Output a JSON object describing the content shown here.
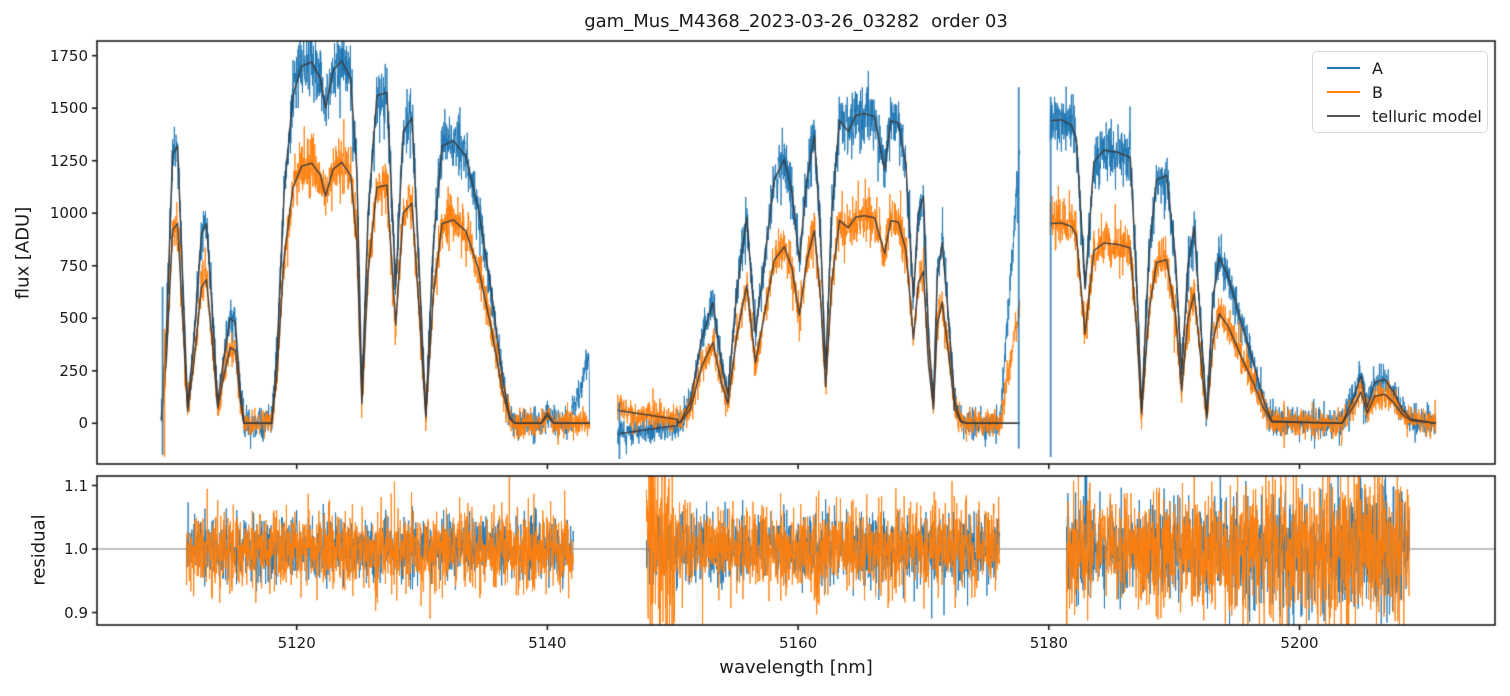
{
  "figure": {
    "title": "gam_Mus_M4368_2023-03-26_03282  order 03"
  },
  "chart_data": {
    "type": "line",
    "title": "gam_Mus_M4368_2023-03-26_03282  order 03",
    "xlabel": "wavelength [nm]",
    "grid": false,
    "xticks": [
      5120,
      5140,
      5160,
      5180,
      5200
    ],
    "xtick_labels": [
      "5120",
      "5140",
      "5160",
      "5180",
      "5200"
    ],
    "panels": [
      {
        "name": "flux",
        "ylabel": "flux [ADU]",
        "ylim": [
          -195,
          1820
        ],
        "xlim": [
          5104.1,
          5215.6
        ],
        "yticks": [
          0,
          250,
          500,
          750,
          1000,
          1250,
          1500,
          1750
        ],
        "ytick_labels": [
          "0",
          "250",
          "500",
          "750",
          "1000",
          "1250",
          "1500",
          "1750"
        ]
      },
      {
        "name": "residual",
        "ylabel": "residual",
        "ylim": [
          0.8815,
          1.1155
        ],
        "xlim": [
          5104.1,
          5215.6
        ],
        "yticks": [
          0.9,
          1.0,
          1.1
        ],
        "ytick_labels": [
          "0.9",
          "1.0",
          "1.1"
        ],
        "reference_line": 1.0,
        "reference_color": "#808080"
      }
    ],
    "legend": {
      "position": "upper right",
      "entries": [
        {
          "label": "A",
          "color": "#1f77b4"
        },
        {
          "label": "B",
          "color": "#ff7f0e"
        },
        {
          "label": "telluric model",
          "color": "#555555"
        }
      ]
    },
    "colors": {
      "A": "#1f77b4",
      "B": "#ff7f0e",
      "model": "#3a3a3a"
    },
    "noise": {
      "sigmaA_base": 34,
      "sigmaA_slope": 0.027,
      "sigmaB_base": 32,
      "sigmaB_slope": 0.027,
      "seed": 7
    },
    "flux_chunks": [
      {
        "b_to_a_ratio": 0.72,
        "model_A": [
          [
            5109.2,
            20
          ],
          [
            5109.6,
            420
          ],
          [
            5110.1,
            1280
          ],
          [
            5110.5,
            1320
          ],
          [
            5110.9,
            700
          ],
          [
            5111.3,
            80
          ],
          [
            5111.8,
            400
          ],
          [
            5112.4,
            900
          ],
          [
            5112.8,
            950
          ],
          [
            5113.2,
            600
          ],
          [
            5113.7,
            100
          ],
          [
            5114.2,
            320
          ],
          [
            5114.7,
            500
          ],
          [
            5115.1,
            480
          ],
          [
            5115.5,
            150
          ],
          [
            5115.8,
            0
          ],
          [
            5118.0,
            0
          ],
          [
            5118.4,
            300
          ],
          [
            5119.0,
            1100
          ],
          [
            5119.7,
            1560
          ],
          [
            5120.4,
            1700
          ],
          [
            5121.2,
            1720
          ],
          [
            5121.9,
            1640
          ],
          [
            5122.3,
            1500
          ],
          [
            5122.9,
            1680
          ],
          [
            5123.6,
            1725
          ],
          [
            5124.3,
            1640
          ],
          [
            5124.8,
            1200
          ],
          [
            5125.2,
            130
          ],
          [
            5125.7,
            1000
          ],
          [
            5126.4,
            1560
          ],
          [
            5127.2,
            1575
          ],
          [
            5127.9,
            650
          ],
          [
            5128.5,
            1390
          ],
          [
            5129.2,
            1455
          ],
          [
            5129.8,
            700
          ],
          [
            5130.3,
            40
          ],
          [
            5130.9,
            850
          ],
          [
            5131.6,
            1320
          ],
          [
            5132.5,
            1345
          ],
          [
            5133.5,
            1270
          ],
          [
            5134.5,
            1020
          ],
          [
            5135.5,
            640
          ],
          [
            5136.4,
            220
          ],
          [
            5137.0,
            30
          ],
          [
            5137.4,
            0
          ],
          [
            5139.5,
            0
          ],
          [
            5140.0,
            50
          ],
          [
            5140.5,
            0
          ],
          [
            5141.7,
            0
          ],
          [
            5143.4,
            0
          ]
        ]
      },
      {
        "b_to_a_ratio": 0.67,
        "model_A": [
          [
            5145.6,
            5
          ],
          [
            5150.6,
            5
          ],
          [
            5151.4,
            100
          ],
          [
            5152.3,
            400
          ],
          [
            5153.2,
            575
          ],
          [
            5153.9,
            280
          ],
          [
            5154.4,
            140
          ],
          [
            5155.1,
            620
          ],
          [
            5155.9,
            980
          ],
          [
            5156.6,
            430
          ],
          [
            5157.2,
            720
          ],
          [
            5158.1,
            1160
          ],
          [
            5158.9,
            1255
          ],
          [
            5159.5,
            1105
          ],
          [
            5160.1,
            770
          ],
          [
            5160.7,
            1160
          ],
          [
            5161.3,
            1370
          ],
          [
            5161.8,
            880
          ],
          [
            5162.2,
            260
          ],
          [
            5162.7,
            1010
          ],
          [
            5163.3,
            1440
          ],
          [
            5164.0,
            1390
          ],
          [
            5164.6,
            1465
          ],
          [
            5165.3,
            1475
          ],
          [
            5166.1,
            1460
          ],
          [
            5166.9,
            1205
          ],
          [
            5167.4,
            1440
          ],
          [
            5168.0,
            1430
          ],
          [
            5168.6,
            1230
          ],
          [
            5169.2,
            600
          ],
          [
            5169.6,
            1000
          ],
          [
            5170.0,
            1080
          ],
          [
            5170.4,
            420
          ],
          [
            5170.8,
            100
          ],
          [
            5171.1,
            700
          ],
          [
            5171.5,
            860
          ],
          [
            5172.0,
            500
          ],
          [
            5172.5,
            100
          ],
          [
            5173.0,
            10
          ],
          [
            5173.5,
            0
          ],
          [
            5176.0,
            0
          ],
          [
            5177.7,
            0
          ]
        ]
      },
      {
        "b_to_a_ratio": 0.66,
        "model_A": [
          [
            5180.1,
            1440
          ],
          [
            5181.0,
            1445
          ],
          [
            5181.8,
            1420
          ],
          [
            5182.2,
            1355
          ],
          [
            5182.9,
            645
          ],
          [
            5183.6,
            1245
          ],
          [
            5184.4,
            1300
          ],
          [
            5185.5,
            1290
          ],
          [
            5186.5,
            1265
          ],
          [
            5187.0,
            690
          ],
          [
            5187.4,
            70
          ],
          [
            5188.0,
            810
          ],
          [
            5188.6,
            1160
          ],
          [
            5189.4,
            1180
          ],
          [
            5190.1,
            790
          ],
          [
            5190.6,
            235
          ],
          [
            5191.1,
            750
          ],
          [
            5191.6,
            935
          ],
          [
            5192.1,
            490
          ],
          [
            5192.6,
            40
          ],
          [
            5193.1,
            600
          ],
          [
            5193.6,
            790
          ],
          [
            5194.3,
            700
          ],
          [
            5194.9,
            575
          ],
          [
            5195.6,
            430
          ],
          [
            5196.4,
            275
          ],
          [
            5197.1,
            115
          ],
          [
            5197.8,
            10
          ],
          [
            5203.4,
            0
          ],
          [
            5204.3,
            120
          ],
          [
            5204.9,
            225
          ],
          [
            5205.4,
            75
          ],
          [
            5206.0,
            195
          ],
          [
            5206.8,
            210
          ],
          [
            5207.5,
            150
          ],
          [
            5208.2,
            65
          ],
          [
            5208.9,
            20
          ],
          [
            5210.9,
            0
          ]
        ]
      }
    ],
    "artifacts": [
      {
        "kind": "vline",
        "series": "A",
        "w": 5109.3,
        "f0": -150,
        "f1": 650
      },
      {
        "kind": "vline",
        "series": "B",
        "w": 5109.45,
        "f0": -160,
        "f1": 450
      },
      {
        "kind": "ramp",
        "series": "A",
        "w0": 5141.7,
        "w1": 5143.35,
        "d0": 0,
        "d1": 300,
        "model": false
      },
      {
        "kind": "vline",
        "series": "A",
        "w": 5145.75,
        "f0": -170,
        "f1": 100
      },
      {
        "kind": "ramp",
        "series": "A",
        "w0": 5145.6,
        "w1": 5150.4,
        "d0": -55,
        "d1": -15,
        "model": true
      },
      {
        "kind": "ramp",
        "series": "B",
        "w0": 5145.6,
        "w1": 5150.4,
        "d0": 58,
        "d1": 15,
        "model": true
      },
      {
        "kind": "ramp",
        "series": "A",
        "w0": 5176.1,
        "w1": 5177.75,
        "d0": 0,
        "d1": 1350,
        "model": false
      },
      {
        "kind": "ramp",
        "series": "B",
        "w0": 5176.1,
        "w1": 5177.75,
        "d0": 0,
        "d1": 580,
        "model": false
      },
      {
        "kind": "vline",
        "series": "A",
        "w": 5177.6,
        "f0": -120,
        "f1": 1600
      },
      {
        "kind": "vline",
        "series": "A",
        "w": 5180.15,
        "f0": -160,
        "f1": 1555
      }
    ],
    "residual_chunks": [
      {
        "w0": 5111.2,
        "w1": 5142.1,
        "sigmaA": 0.024,
        "sigmaB": 0.03,
        "grow": 0,
        "hot": []
      },
      {
        "w0": 5147.9,
        "w1": 5176.1,
        "sigmaA": 0.027,
        "sigmaB": 0.033,
        "grow": 0,
        "hot": [
          {
            "w0": 5147.9,
            "w1": 5150.2,
            "mult": 2.6,
            "series": "B"
          }
        ]
      },
      {
        "w0": 5181.4,
        "w1": 5208.8,
        "sigmaA": 0.028,
        "sigmaB": 0.036,
        "grow": 0.9,
        "hot": [
          {
            "w0": 5181.4,
            "w1": 5183.4,
            "mult": 1.5,
            "series": "both"
          }
        ]
      }
    ]
  }
}
